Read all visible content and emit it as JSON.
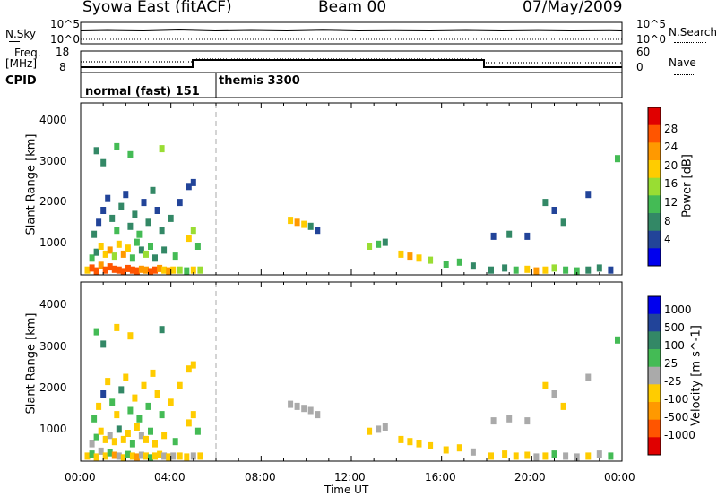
{
  "header": {
    "station": "Syowa East (fitACF)",
    "beam": "Beam 00",
    "date": "07/May/2009"
  },
  "top_panels": {
    "nsky_label": "N.Sky",
    "nsky_ticks": [
      "10^5",
      "10^0"
    ],
    "nsearch_label": "N.Search",
    "nsearch_ticks": [
      "10^5",
      "10^0"
    ],
    "freq_label": "Freq.",
    "freq_unit": "[MHz]",
    "freq_ticks": [
      "18",
      "8"
    ],
    "nave_label": "Nave",
    "nave_ticks": [
      "60",
      "0"
    ],
    "cpid_label": "CPID",
    "cpid_modes": [
      {
        "name": "normal (fast) 151",
        "start_hour": 0,
        "end_hour": 6
      },
      {
        "name": "themis 3300",
        "start_hour": 6,
        "end_hour": 24
      }
    ]
  },
  "chart_data": [
    {
      "type": "heatmap",
      "panel": "power",
      "xlabel": "",
      "ylabel": "Slant Range [km]",
      "xlim": [
        0,
        24
      ],
      "ylim": [
        180,
        4500
      ],
      "yticks": [
        "4000",
        "3000",
        "2000",
        "1000"
      ],
      "colorbar_label": "Power [dB]",
      "colorbar_ticks": [
        "28",
        "24",
        "20",
        "16",
        "12",
        "8",
        "4"
      ],
      "colorbar_colors": [
        "#e00000",
        "#ff5500",
        "#ff9900",
        "#ffcc00",
        "#99dd33",
        "#44bb55",
        "#338866",
        "#224499",
        "#0000ee"
      ],
      "scale_min": 0,
      "scale_max": 32,
      "cells": [
        [
          0.3,
          300,
          20
        ],
        [
          0.5,
          350,
          26
        ],
        [
          0.7,
          280,
          28
        ],
        [
          0.9,
          420,
          24
        ],
        [
          1.1,
          300,
          26
        ],
        [
          1.3,
          380,
          28
        ],
        [
          1.5,
          320,
          27
        ],
        [
          1.7,
          300,
          26
        ],
        [
          1.9,
          260,
          28
        ],
        [
          2.1,
          340,
          25
        ],
        [
          2.3,
          300,
          27
        ],
        [
          2.5,
          280,
          28
        ],
        [
          2.7,
          320,
          24
        ],
        [
          2.9,
          300,
          22
        ],
        [
          3.1,
          260,
          26
        ],
        [
          3.3,
          300,
          25
        ],
        [
          3.5,
          340,
          24
        ],
        [
          3.7,
          300,
          20
        ],
        [
          3.9,
          280,
          22
        ],
        [
          4.1,
          300,
          18
        ],
        [
          4.4,
          300,
          16
        ],
        [
          4.7,
          280,
          14
        ],
        [
          5.0,
          300,
          18
        ],
        [
          5.3,
          300,
          16
        ],
        [
          0.5,
          600,
          14
        ],
        [
          0.7,
          750,
          10
        ],
        [
          0.9,
          900,
          18
        ],
        [
          1.1,
          700,
          20
        ],
        [
          1.3,
          800,
          22
        ],
        [
          1.5,
          650,
          16
        ],
        [
          1.7,
          950,
          20
        ],
        [
          1.9,
          700,
          24
        ],
        [
          2.1,
          850,
          18
        ],
        [
          2.3,
          600,
          14
        ],
        [
          2.5,
          1000,
          12
        ],
        [
          2.7,
          800,
          10
        ],
        [
          2.9,
          700,
          16
        ],
        [
          3.1,
          900,
          12
        ],
        [
          3.3,
          600,
          8
        ],
        [
          3.7,
          800,
          10
        ],
        [
          4.2,
          650,
          12
        ],
        [
          4.8,
          1100,
          20
        ],
        [
          5.0,
          1300,
          16
        ],
        [
          5.2,
          900,
          12
        ],
        [
          0.6,
          1200,
          8
        ],
        [
          0.8,
          1500,
          6
        ],
        [
          1.0,
          1800,
          4
        ],
        [
          1.2,
          2100,
          6
        ],
        [
          1.4,
          1600,
          10
        ],
        [
          1.6,
          1300,
          12
        ],
        [
          1.8,
          1900,
          8
        ],
        [
          2.0,
          2200,
          6
        ],
        [
          2.2,
          1400,
          10
        ],
        [
          2.4,
          1700,
          8
        ],
        [
          2.6,
          1200,
          12
        ],
        [
          2.8,
          2000,
          6
        ],
        [
          3.0,
          1500,
          10
        ],
        [
          3.2,
          2300,
          8
        ],
        [
          3.4,
          1800,
          6
        ],
        [
          3.6,
          1300,
          10
        ],
        [
          4.0,
          1600,
          8
        ],
        [
          4.4,
          2000,
          6
        ],
        [
          4.8,
          2400,
          4
        ],
        [
          5.0,
          2500,
          6
        ],
        [
          0.7,
          3300,
          10
        ],
        [
          1.0,
          3000,
          8
        ],
        [
          1.6,
          3400,
          14
        ],
        [
          2.2,
          3200,
          12
        ],
        [
          3.6,
          3350,
          16
        ],
        [
          9.3,
          1550,
          20
        ],
        [
          9.6,
          1500,
          22
        ],
        [
          9.9,
          1450,
          18
        ],
        [
          10.2,
          1400,
          8
        ],
        [
          10.5,
          1300,
          6
        ],
        [
          12.8,
          900,
          16
        ],
        [
          13.2,
          950,
          12
        ],
        [
          13.5,
          1000,
          8
        ],
        [
          14.2,
          700,
          20
        ],
        [
          14.6,
          650,
          22
        ],
        [
          15.0,
          600,
          18
        ],
        [
          15.5,
          550,
          16
        ],
        [
          16.2,
          450,
          14
        ],
        [
          16.8,
          500,
          12
        ],
        [
          17.4,
          400,
          10
        ],
        [
          18.2,
          300,
          8
        ],
        [
          18.8,
          350,
          10
        ],
        [
          19.3,
          300,
          14
        ],
        [
          19.8,
          320,
          20
        ],
        [
          20.2,
          280,
          22
        ],
        [
          20.6,
          300,
          18
        ],
        [
          21.0,
          350,
          16
        ],
        [
          21.5,
          300,
          14
        ],
        [
          22.0,
          280,
          12
        ],
        [
          22.5,
          300,
          10
        ],
        [
          23.0,
          350,
          8
        ],
        [
          23.5,
          300,
          6
        ],
        [
          18.3,
          1150,
          6
        ],
        [
          19.0,
          1200,
          8
        ],
        [
          19.8,
          1150,
          6
        ],
        [
          20.6,
          2000,
          8
        ],
        [
          21.0,
          1800,
          6
        ],
        [
          21.4,
          1500,
          10
        ],
        [
          22.5,
          2200,
          6
        ],
        [
          23.8,
          3100,
          14
        ]
      ]
    },
    {
      "type": "heatmap",
      "panel": "velocity",
      "xlabel": "Time UT",
      "ylabel": "Slant Range [km]",
      "xlim": [
        0,
        24
      ],
      "ylim": [
        180,
        4500
      ],
      "xticks": [
        "00:00",
        "04:00",
        "08:00",
        "12:00",
        "16:00",
        "20:00",
        "00:00"
      ],
      "yticks": [
        "4000",
        "3000",
        "2000",
        "1000"
      ],
      "colorbar_label": "Velocity [m s^-1]",
      "colorbar_ticks": [
        "1000",
        "500",
        "100",
        "25",
        "-25",
        "-100",
        "-500",
        "-1000"
      ],
      "colorbar_colors": [
        "#0000ee",
        "#224499",
        "#338866",
        "#44bb55",
        "#aaaaaa",
        "#ffcc00",
        "#ff9900",
        "#ff5500",
        "#e00000"
      ],
      "scale_min": -1000,
      "scale_max": 1000,
      "cells": [
        [
          0.3,
          300,
          -150
        ],
        [
          0.5,
          350,
          120
        ],
        [
          0.7,
          280,
          -300
        ],
        [
          0.9,
          420,
          80
        ],
        [
          1.1,
          300,
          -200
        ],
        [
          1.3,
          380,
          150
        ],
        [
          1.5,
          320,
          -400
        ],
        [
          1.7,
          300,
          60
        ],
        [
          1.9,
          260,
          -250
        ],
        [
          2.1,
          340,
          200
        ],
        [
          2.3,
          300,
          -120
        ],
        [
          2.5,
          280,
          -350
        ],
        [
          2.7,
          320,
          90
        ],
        [
          2.9,
          300,
          -180
        ],
        [
          3.1,
          260,
          140
        ],
        [
          3.3,
          300,
          -220
        ],
        [
          3.5,
          340,
          -300
        ],
        [
          3.7,
          300,
          70
        ],
        [
          3.9,
          280,
          -160
        ],
        [
          4.1,
          300,
          110
        ],
        [
          4.4,
          300,
          -260
        ],
        [
          4.7,
          280,
          -200
        ],
        [
          5.0,
          300,
          50
        ],
        [
          5.3,
          300,
          -140
        ],
        [
          0.5,
          600,
          -100
        ],
        [
          0.7,
          750,
          300
        ],
        [
          0.9,
          900,
          -250
        ],
        [
          1.1,
          700,
          -200
        ],
        [
          1.3,
          800,
          100
        ],
        [
          1.5,
          650,
          -300
        ],
        [
          1.7,
          950,
          500
        ],
        [
          1.9,
          700,
          -150
        ],
        [
          2.1,
          850,
          -180
        ],
        [
          2.3,
          600,
          250
        ],
        [
          2.5,
          1000,
          -300
        ],
        [
          2.7,
          800,
          80
        ],
        [
          2.9,
          700,
          -220
        ],
        [
          3.1,
          900,
          300
        ],
        [
          3.3,
          600,
          -120
        ],
        [
          3.7,
          800,
          -200
        ],
        [
          4.2,
          650,
          120
        ],
        [
          4.8,
          1100,
          -300
        ],
        [
          5.0,
          1300,
          -250
        ],
        [
          5.2,
          900,
          150
        ],
        [
          0.6,
          1200,
          200
        ],
        [
          0.8,
          1500,
          -150
        ],
        [
          1.0,
          1800,
          600
        ],
        [
          1.2,
          2100,
          -120
        ],
        [
          1.4,
          1600,
          300
        ],
        [
          1.6,
          1300,
          -200
        ],
        [
          1.8,
          1900,
          400
        ],
        [
          2.0,
          2200,
          -180
        ],
        [
          2.2,
          1400,
          150
        ],
        [
          2.4,
          1700,
          -300
        ],
        [
          2.6,
          1200,
          250
        ],
        [
          2.8,
          2000,
          -200
        ],
        [
          3.0,
          1500,
          300
        ],
        [
          3.2,
          2300,
          -150
        ],
        [
          3.4,
          1800,
          -250
        ],
        [
          3.6,
          1300,
          200
        ],
        [
          4.0,
          1600,
          -300
        ],
        [
          4.4,
          2000,
          -200
        ],
        [
          4.8,
          2400,
          -250
        ],
        [
          5.0,
          2500,
          -150
        ],
        [
          0.7,
          3300,
          200
        ],
        [
          1.0,
          3000,
          400
        ],
        [
          1.6,
          3400,
          -150
        ],
        [
          2.2,
          3200,
          -300
        ],
        [
          3.6,
          3350,
          500
        ],
        [
          9.3,
          1550,
          80
        ],
        [
          9.6,
          1500,
          -50
        ],
        [
          9.9,
          1450,
          0
        ],
        [
          10.2,
          1400,
          20
        ],
        [
          10.5,
          1300,
          10
        ],
        [
          12.8,
          900,
          -120
        ],
        [
          13.2,
          950,
          60
        ],
        [
          13.5,
          1000,
          -80
        ],
        [
          14.2,
          700,
          -150
        ],
        [
          14.6,
          650,
          -200
        ],
        [
          15.0,
          600,
          -250
        ],
        [
          15.5,
          550,
          -180
        ],
        [
          16.2,
          450,
          -150
        ],
        [
          16.8,
          500,
          -120
        ],
        [
          17.4,
          400,
          -100
        ],
        [
          18.2,
          300,
          -120
        ],
        [
          18.8,
          350,
          -140
        ],
        [
          19.3,
          300,
          -200
        ],
        [
          19.8,
          320,
          -150
        ],
        [
          20.2,
          280,
          80
        ],
        [
          20.6,
          300,
          -180
        ],
        [
          21.0,
          350,
          120
        ],
        [
          21.5,
          300,
          -100
        ],
        [
          22.0,
          280,
          90
        ],
        [
          22.5,
          300,
          -150
        ],
        [
          23.0,
          350,
          100
        ],
        [
          23.5,
          300,
          200
        ],
        [
          18.3,
          1150,
          0
        ],
        [
          19.0,
          1200,
          10
        ],
        [
          19.8,
          1150,
          -10
        ],
        [
          20.6,
          2000,
          -200
        ],
        [
          21.0,
          1800,
          80
        ],
        [
          21.4,
          1500,
          -150
        ],
        [
          22.5,
          2200,
          60
        ],
        [
          23.8,
          3100,
          150
        ]
      ]
    }
  ]
}
